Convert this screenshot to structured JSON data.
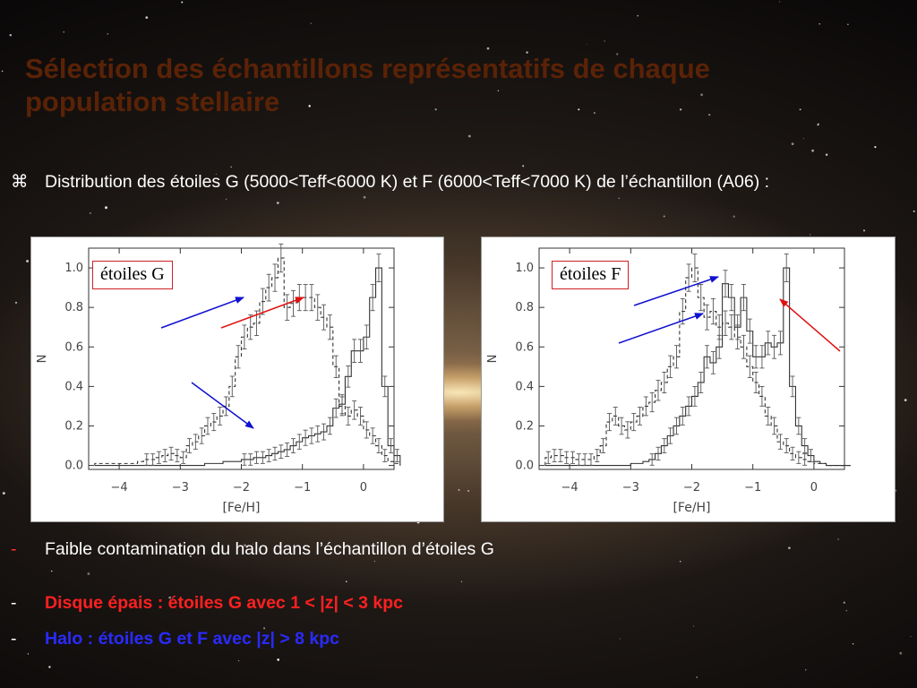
{
  "slide": {
    "title": "Sélection des échantillons représentatifs de chaque population stellaire",
    "bullet_symbol": "⌘",
    "bullet_text": "Distribution des étoiles G (5000<Teff<6000 K) et F (6000<Teff<7000 K)  de l’échantillon (A06) :",
    "lines": [
      {
        "dash": "-",
        "text": "Faible contamination du halo dans l’échantillon d’étoiles G"
      },
      {
        "dash": "-",
        "text": "Disque épais : étoiles G  avec 1 < |z| < 3 kpc"
      },
      {
        "dash": "-",
        "text": "Halo : étoiles G et F avec |z| > 8 kpc"
      }
    ]
  },
  "colors": {
    "title": "#5a2206",
    "thick_disc": "#ff2020",
    "halo": "#2a2aff",
    "arrow_blue": "#1010d0",
    "arrow_red": "#e01010"
  },
  "chart_data": [
    {
      "type": "histogram",
      "legend_label": "étoiles G",
      "xlabel": "[Fe/H]",
      "ylabel": "N",
      "xlim": [
        -4.5,
        0.5
      ],
      "ylim": [
        -0.02,
        1.1
      ],
      "xticks": [
        -4,
        -3,
        -2,
        -1,
        0
      ],
      "yticks": [
        0.0,
        0.2,
        0.4,
        0.6,
        0.8,
        1.0
      ],
      "ytick_labels": [
        "0.0",
        "0.2",
        "0.4",
        "0.6",
        "0.8",
        "1.0"
      ],
      "bin_width": 0.1,
      "series": [
        {
          "style": "solid",
          "x_start": -4.4,
          "values": [
            0,
            0,
            0,
            0,
            0,
            0,
            0,
            0,
            0,
            0,
            0,
            0,
            0,
            0,
            0,
            0,
            0,
            0,
            0.01,
            0.01,
            0.01,
            0.02,
            0.02,
            0.02,
            0.03,
            0.03,
            0.04,
            0.04,
            0.05,
            0.06,
            0.07,
            0.08,
            0.1,
            0.12,
            0.14,
            0.15,
            0.16,
            0.17,
            0.2,
            0.29,
            0.31,
            0.45,
            0.58,
            0.58,
            0.65,
            0.85,
            1.0,
            0.4,
            0.1,
            0.05
          ]
        },
        {
          "style": "dashed",
          "x_start": -4.4,
          "values": [
            0.01,
            0.01,
            0.01,
            0.01,
            0.01,
            0.01,
            0.01,
            0.02,
            0.03,
            0.03,
            0.04,
            0.05,
            0.06,
            0.05,
            0.04,
            0.1,
            0.12,
            0.15,
            0.2,
            0.22,
            0.25,
            0.3,
            0.4,
            0.55,
            0.65,
            0.7,
            0.72,
            0.83,
            0.9,
            0.95,
            1.05,
            0.8,
            0.82,
            0.85,
            0.85,
            0.85,
            0.8,
            0.75,
            0.7,
            0.5,
            0.3,
            0.25,
            0.28,
            0.25,
            0.18,
            0.15,
            0.1,
            0.05,
            0.02,
            0.01
          ]
        }
      ]
    },
    {
      "type": "histogram",
      "legend_label": "étoiles F",
      "xlabel": "[Fe/H]",
      "ylabel": "N",
      "xlim": [
        -4.5,
        0.5
      ],
      "ylim": [
        -0.02,
        1.1
      ],
      "xticks": [
        -4,
        -3,
        -2,
        -1,
        0
      ],
      "yticks": [
        0.0,
        0.2,
        0.4,
        0.6,
        0.8,
        1.0
      ],
      "ytick_labels": [
        "0.0",
        "0.2",
        "0.4",
        "0.6",
        "0.8",
        "1.0"
      ],
      "bin_width": 0.1,
      "series": [
        {
          "style": "solid",
          "x_start": -4.4,
          "values": [
            0,
            0,
            0,
            0,
            0,
            0,
            0,
            0,
            0,
            0,
            0,
            0,
            0,
            0,
            0.01,
            0.01,
            0.02,
            0.03,
            0.06,
            0.1,
            0.15,
            0.2,
            0.25,
            0.3,
            0.35,
            0.42,
            0.55,
            0.52,
            0.6,
            0.92,
            0.85,
            0.7,
            0.85,
            0.68,
            0.55,
            0.55,
            0.62,
            0.6,
            0.62,
            1.0,
            0.4,
            0.2,
            0.1,
            0.05,
            0.02,
            0.01,
            0,
            0,
            0,
            0
          ]
        },
        {
          "style": "dashed",
          "x_start": -4.4,
          "values": [
            0.04,
            0.05,
            0.05,
            0.04,
            0.04,
            0.03,
            0.03,
            0.03,
            0.05,
            0.1,
            0.22,
            0.25,
            0.2,
            0.18,
            0.22,
            0.25,
            0.3,
            0.32,
            0.38,
            0.42,
            0.5,
            0.55,
            0.78,
            0.95,
            1.0,
            0.85,
            0.75,
            0.78,
            0.7,
            0.72,
            0.7,
            0.65,
            0.6,
            0.5,
            0.42,
            0.35,
            0.25,
            0.2,
            0.12,
            0.1,
            0.06,
            0.04,
            0.03,
            0.02,
            0.01,
            0.01,
            0,
            0,
            0,
            0
          ]
        }
      ]
    }
  ]
}
